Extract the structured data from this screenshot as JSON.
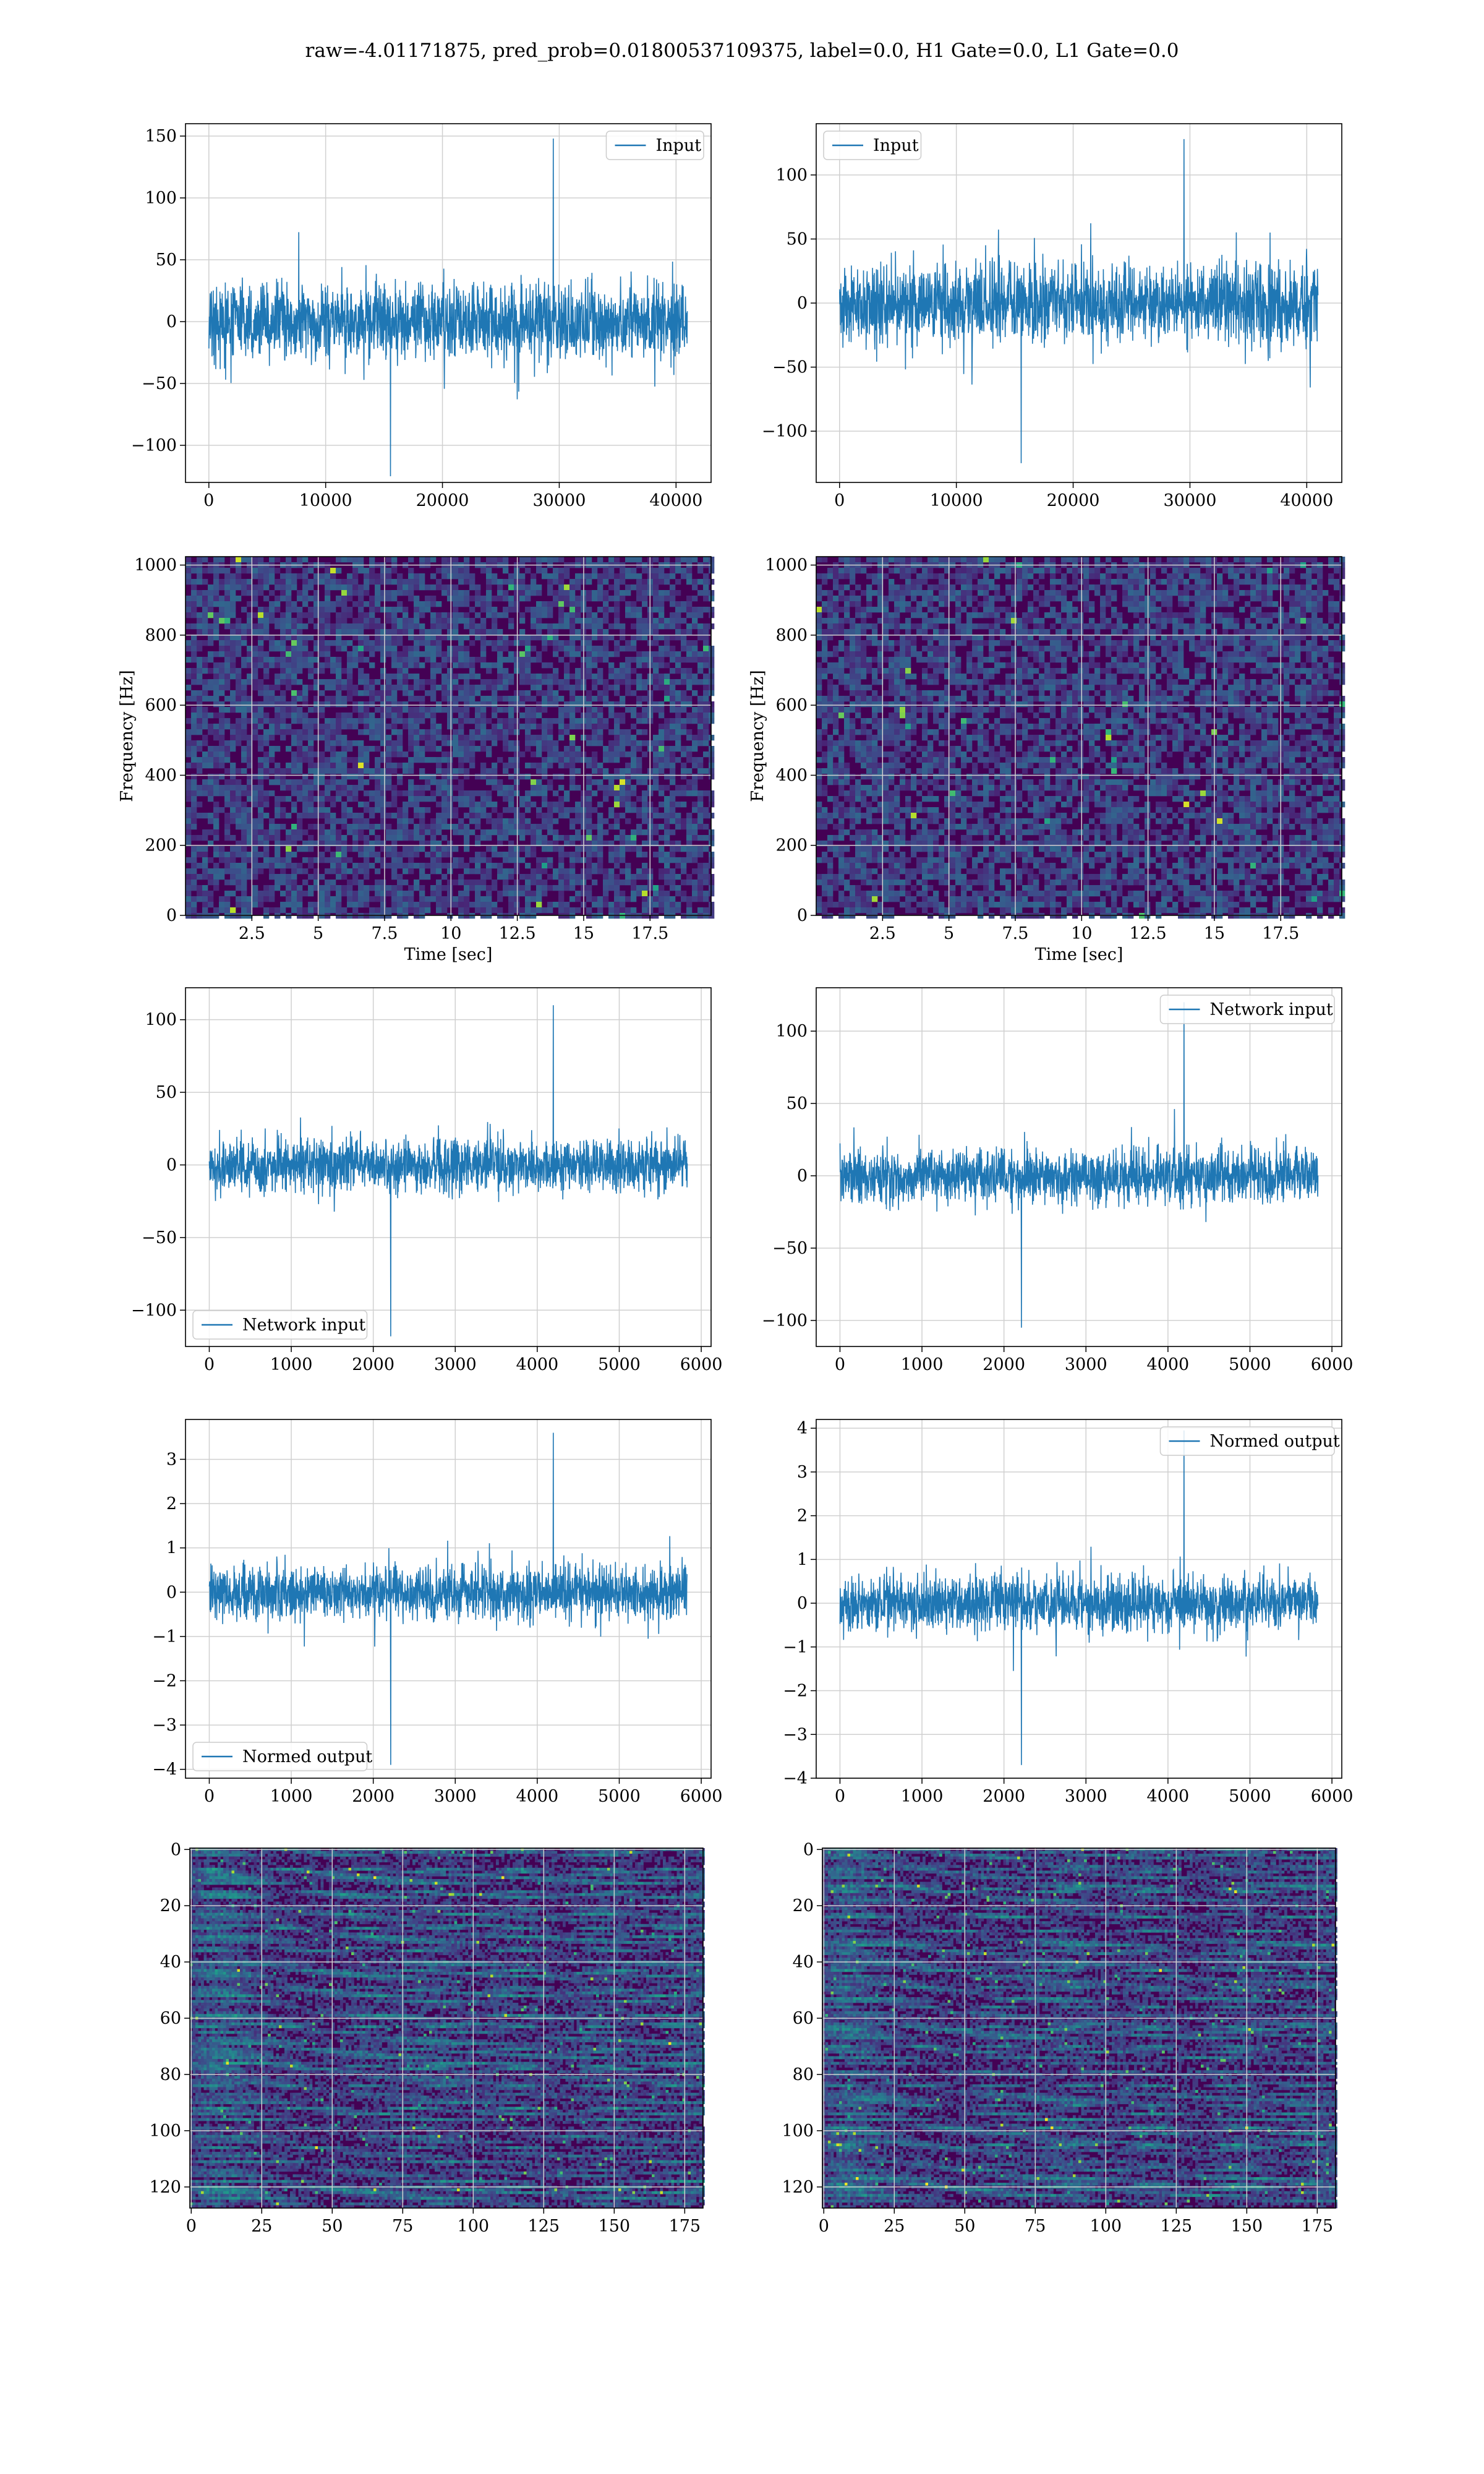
{
  "figure": {
    "title": "raw=-4.01171875, pred_prob=0.01800537109375, label=0.0, H1 Gate=0.0, L1 Gate=0.0"
  },
  "colors": {
    "series": "#1f77b4",
    "grid": "#d0d0d0",
    "viridis_low": "#440154",
    "viridis_high": "#fde725"
  },
  "chart_data": [
    {
      "id": "strain_h1",
      "type": "line",
      "panel": "row1-left",
      "xlim": [
        -2000,
        43000
      ],
      "ylim": [
        -130,
        160
      ],
      "xticks": [
        0,
        10000,
        20000,
        30000,
        40000
      ],
      "yticks": [
        -100,
        -50,
        0,
        50,
        100,
        150
      ],
      "series": [
        {
          "name": "Input",
          "n_samples": 40960,
          "x_range": [
            0,
            40960
          ],
          "envelope_typical": 65,
          "peak_max": 148,
          "peak_min": -125
        }
      ],
      "legend": "upper right",
      "grid": true
    },
    {
      "id": "strain_l1",
      "type": "line",
      "panel": "row1-right",
      "xlim": [
        -2000,
        43000
      ],
      "ylim": [
        -140,
        140
      ],
      "xticks": [
        0,
        10000,
        20000,
        30000,
        40000
      ],
      "yticks": [
        -100,
        -50,
        0,
        50,
        100
      ],
      "series": [
        {
          "name": "Input",
          "n_samples": 40960,
          "x_range": [
            0,
            40960
          ],
          "envelope_typical": 65,
          "peak_max": 128,
          "peak_min": -125
        }
      ],
      "legend": "upper left",
      "grid": true
    },
    {
      "id": "spec_h1",
      "type": "heatmap",
      "panel": "row2-left",
      "xlim": [
        0,
        19.8
      ],
      "ylim": [
        0,
        1024
      ],
      "xticks": [
        2.5,
        5.0,
        7.5,
        10.0,
        12.5,
        15.0,
        17.5
      ],
      "yticks": [
        0,
        200,
        400,
        600,
        800,
        1000
      ],
      "xlabel": "Time [sec]",
      "ylabel": "Frequency [Hz]",
      "colormap": "viridis",
      "grid": true
    },
    {
      "id": "spec_l1",
      "type": "heatmap",
      "panel": "row2-right",
      "xlim": [
        0,
        19.8
      ],
      "ylim": [
        0,
        1024
      ],
      "xticks": [
        2.5,
        5.0,
        7.5,
        10.0,
        12.5,
        15.0,
        17.5
      ],
      "yticks": [
        0,
        200,
        400,
        600,
        800,
        1000
      ],
      "xlabel": "Time [sec]",
      "ylabel": "Frequency [Hz]",
      "colormap": "viridis",
      "grid": true
    },
    {
      "id": "net_h1",
      "type": "line",
      "panel": "row3-left",
      "xlim": [
        -290,
        6120
      ],
      "ylim": [
        -125,
        122
      ],
      "xticks": [
        0,
        1000,
        2000,
        3000,
        4000,
        5000,
        6000
      ],
      "yticks": [
        -100,
        -50,
        0,
        50,
        100
      ],
      "series": [
        {
          "name": "Network input",
          "n_samples": 5830,
          "x_range": [
            0,
            5830
          ],
          "envelope_typical": 40,
          "peak_max": 110,
          "peak_min": -118
        }
      ],
      "legend": "lower left",
      "grid": true
    },
    {
      "id": "net_l1",
      "type": "line",
      "panel": "row3-right",
      "xlim": [
        -290,
        6120
      ],
      "ylim": [
        -118,
        130
      ],
      "xticks": [
        0,
        1000,
        2000,
        3000,
        4000,
        5000,
        6000
      ],
      "yticks": [
        -100,
        -50,
        0,
        50,
        100
      ],
      "series": [
        {
          "name": "Network input",
          "n_samples": 5830,
          "x_range": [
            0,
            5830
          ],
          "envelope_typical": 40,
          "peak_max": 120,
          "peak_min": -105
        }
      ],
      "legend": "upper right",
      "grid": true
    },
    {
      "id": "norm_h1",
      "type": "line",
      "panel": "row4-left",
      "xlim": [
        -290,
        6120
      ],
      "ylim": [
        -4.2,
        3.9
      ],
      "xticks": [
        0,
        1000,
        2000,
        3000,
        4000,
        5000,
        6000
      ],
      "yticks": [
        -4,
        -3,
        -2,
        -1,
        0,
        1,
        2,
        3
      ],
      "series": [
        {
          "name": "Normed output",
          "n_samples": 5830,
          "x_range": [
            0,
            5830
          ],
          "envelope_typical": 1.3,
          "peak_max": 3.6,
          "peak_min": -3.9
        }
      ],
      "legend": "lower left",
      "grid": true
    },
    {
      "id": "norm_l1",
      "type": "line",
      "panel": "row4-right",
      "xlim": [
        -290,
        6120
      ],
      "ylim": [
        -4.0,
        4.2
      ],
      "xticks": [
        0,
        1000,
        2000,
        3000,
        4000,
        5000,
        6000
      ],
      "yticks": [
        -4,
        -3,
        -2,
        -1,
        0,
        1,
        2,
        3,
        4
      ],
      "series": [
        {
          "name": "Normed output",
          "n_samples": 5830,
          "x_range": [
            0,
            5830
          ],
          "envelope_typical": 1.3,
          "peak_max": 3.95,
          "peak_min": -3.7
        }
      ],
      "legend": "upper right",
      "grid": true
    },
    {
      "id": "feat_h1",
      "type": "heatmap",
      "panel": "row5-left",
      "xlim": [
        -0.5,
        181.5
      ],
      "ylim": [
        -0.5,
        127.5
      ],
      "y_inverted": true,
      "xticks": [
        0,
        25,
        50,
        75,
        100,
        125,
        150,
        175
      ],
      "yticks": [
        0,
        20,
        40,
        60,
        80,
        100,
        120
      ],
      "shape": [
        128,
        182
      ],
      "colormap": "viridis",
      "grid": true
    },
    {
      "id": "feat_l1",
      "type": "heatmap",
      "panel": "row5-right",
      "xlim": [
        -0.5,
        181.5
      ],
      "ylim": [
        -0.5,
        127.5
      ],
      "y_inverted": true,
      "xticks": [
        0,
        25,
        50,
        75,
        100,
        125,
        150,
        175
      ],
      "yticks": [
        0,
        20,
        40,
        60,
        80,
        100,
        120
      ],
      "shape": [
        128,
        182
      ],
      "colormap": "viridis",
      "grid": true
    }
  ]
}
